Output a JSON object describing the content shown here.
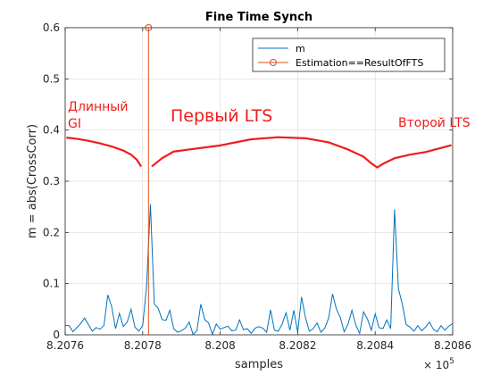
{
  "chart_data": {
    "type": "line",
    "title": "Fine Time Synch",
    "xlabel": "samples",
    "ylabel": "m = abs(CrossCorr)",
    "x_exponent_label": "× 10",
    "x_exponent_power": "5",
    "xlim": [
      820760,
      820860
    ],
    "ylim": [
      0,
      0.6
    ],
    "x_ticks": [
      820760,
      820780,
      820800,
      820820,
      820840,
      820860
    ],
    "x_tick_labels": [
      "8.2076",
      "8.2078",
      "8.208",
      "8.2082",
      "8.2084",
      "8.2086"
    ],
    "y_ticks": [
      0,
      0.1,
      0.2,
      0.3,
      0.4,
      0.5,
      0.6
    ],
    "y_tick_labels": [
      "0",
      "0.1",
      "0.2",
      "0.3",
      "0.4",
      "0.5",
      "0.6"
    ],
    "grid": true,
    "legend_position": "top-right",
    "series": [
      {
        "name": "m",
        "color": "#0072bd",
        "x_start": 820760,
        "x_step": 1,
        "values": [
          0.018,
          0.018,
          0.006,
          0.014,
          0.022,
          0.033,
          0.02,
          0.007,
          0.014,
          0.011,
          0.018,
          0.078,
          0.055,
          0.012,
          0.042,
          0.016,
          0.025,
          0.05,
          0.015,
          0.007,
          0.018,
          0.095,
          0.255,
          0.06,
          0.052,
          0.03,
          0.028,
          0.048,
          0.012,
          0.005,
          0.008,
          0.013,
          0.025,
          0.001,
          0.008,
          0.06,
          0.03,
          0.023,
          0.001,
          0.021,
          0.011,
          0.014,
          0.017,
          0.008,
          0.009,
          0.029,
          0.01,
          0.012,
          0.003,
          0.013,
          0.016,
          0.013,
          0.005,
          0.049,
          0.009,
          0.007,
          0.021,
          0.043,
          0.009,
          0.048,
          0.005,
          0.074,
          0.034,
          0.007,
          0.012,
          0.023,
          0.005,
          0.013,
          0.033,
          0.08,
          0.05,
          0.034,
          0.006,
          0.021,
          0.048,
          0.019,
          0.003,
          0.045,
          0.031,
          0.009,
          0.041,
          0.014,
          0.012,
          0.029,
          0.012,
          0.245,
          0.09,
          0.06,
          0.02,
          0.015,
          0.007,
          0.018,
          0.008,
          0.015,
          0.025,
          0.011,
          0.006,
          0.018,
          0.009,
          0.017,
          0.022
        ]
      },
      {
        "name": "Estimation==ResultOfFTS",
        "color": "#d95319",
        "type": "stem",
        "x": 820781.5,
        "y": 0.6
      }
    ],
    "annotations": [
      {
        "text_line1": "Длинный",
        "text_line2": "GI",
        "x": 820760.4,
        "y": 0.4
      },
      {
        "text": "Первый LTS",
        "x": 820790,
        "y": 0.39
      },
      {
        "text": "Второй LTS",
        "x": 820846,
        "y": 0.395
      }
    ],
    "overlay_curves": {
      "color": "#ee1c1c",
      "segments": [
        {
          "points": [
            [
              820760.5,
              0.385
            ],
            [
              820763,
              0.383
            ],
            [
              820766,
              0.379
            ],
            [
              820769,
              0.374
            ],
            [
              820772,
              0.368
            ],
            [
              820775,
              0.36
            ],
            [
              820777,
              0.352
            ],
            [
              820778.5,
              0.342
            ],
            [
              820779.5,
              0.33
            ]
          ]
        },
        {
          "points": [
            [
              820782.5,
              0.33
            ],
            [
              820785,
              0.345
            ],
            [
              820788,
              0.358
            ],
            [
              820792,
              0.362
            ],
            [
              820800,
              0.37
            ],
            [
              820808,
              0.382
            ],
            [
              820815,
              0.386
            ],
            [
              820822,
              0.384
            ],
            [
              820828,
              0.376
            ],
            [
              820833,
              0.362
            ],
            [
              820837,
              0.348
            ],
            [
              820839,
              0.335
            ],
            [
              820840.5,
              0.327
            ],
            [
              820842,
              0.334
            ],
            [
              820845,
              0.345
            ],
            [
              820849,
              0.352
            ],
            [
              820853,
              0.357
            ],
            [
              820857,
              0.365
            ],
            [
              820859.5,
              0.37
            ]
          ]
        }
      ]
    }
  }
}
